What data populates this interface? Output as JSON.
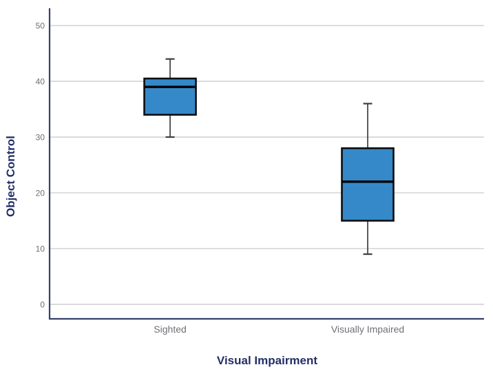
{
  "chart_data": {
    "type": "boxplot",
    "title": "",
    "xlabel": "Visual Impairment",
    "ylabel": "Object Control",
    "categories": [
      "Sighted",
      "Visually Impaired"
    ],
    "series": [
      {
        "category": "Sighted",
        "whisker_low": 30,
        "q1": 34,
        "median": 39,
        "q3": 40.5,
        "whisker_high": 44
      },
      {
        "category": "Visually Impaired",
        "whisker_low": 9,
        "q1": 15,
        "median": 22,
        "q3": 28,
        "whisker_high": 36
      }
    ],
    "yticks": [
      0,
      10,
      20,
      30,
      40,
      50
    ],
    "ylim": [
      -2.6,
      53.1
    ],
    "grid": true,
    "legend": "none",
    "colors": {
      "background": "#ffffff",
      "box_fill": "#3589c8",
      "box_border": "#0d0d0d",
      "median_line": "#000000",
      "whisker": "#3d3d3d",
      "gridline": "#c9c9c9",
      "axis_line": "#333f6b",
      "tick_label": "#6e6e6e",
      "category_label": "#6e7076",
      "axis_title": "#232f66"
    }
  }
}
